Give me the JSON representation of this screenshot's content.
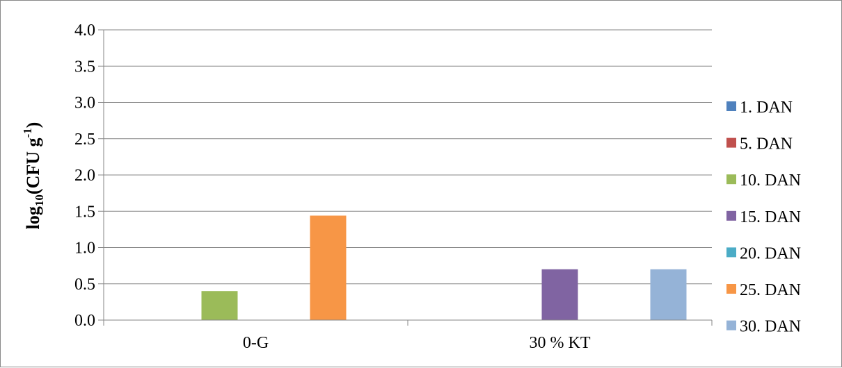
{
  "chart_data": {
    "type": "bar",
    "title": "",
    "xlabel": "",
    "ylabel": {
      "prefix": "log",
      "subscript": "10",
      "main": "(CFU g",
      "superscript": "-1",
      "suffix": ")"
    },
    "ylim": [
      0,
      4
    ],
    "yticks": [
      "0.0",
      "0.5",
      "1.0",
      "1.5",
      "2.0",
      "2.5",
      "3.0",
      "3.5",
      "4.0"
    ],
    "ytick_values": [
      0,
      0.5,
      1,
      1.5,
      2,
      2.5,
      3,
      3.5,
      4
    ],
    "grid": true,
    "legend_position": "right",
    "categories": [
      "0-G",
      "30 % KT"
    ],
    "series": [
      {
        "name": "1. DAN",
        "color": "#4F81BD",
        "values": [
          0,
          0
        ]
      },
      {
        "name": "5. DAN",
        "color": "#C0504D",
        "values": [
          0,
          0
        ]
      },
      {
        "name": "10. DAN",
        "color": "#9BBB59",
        "values": [
          0.4,
          0
        ]
      },
      {
        "name": "15. DAN",
        "color": "#8064A2",
        "values": [
          0,
          0.7
        ]
      },
      {
        "name": "20. DAN",
        "color": "#4BACC6",
        "values": [
          0,
          0
        ]
      },
      {
        "name": "25. DAN",
        "color": "#F79646",
        "values": [
          1.44,
          0
        ]
      },
      {
        "name": "30. DAN",
        "color": "#95B3D7",
        "values": [
          0,
          0.7
        ]
      }
    ]
  }
}
